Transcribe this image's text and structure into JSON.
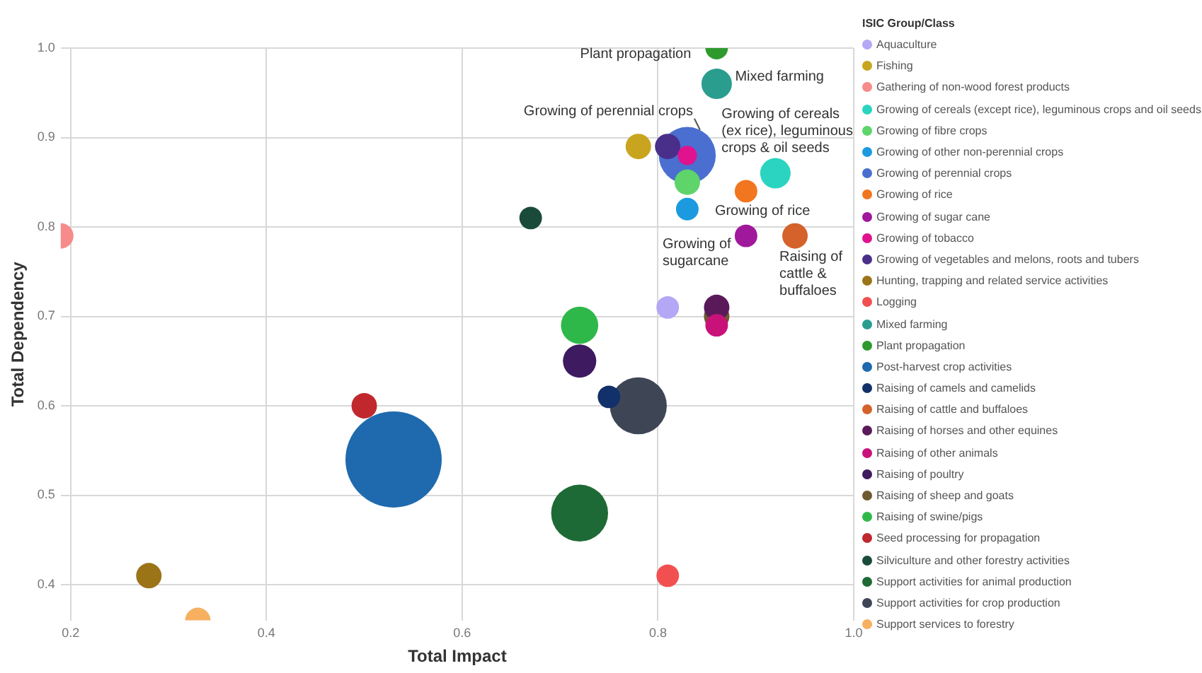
{
  "chart_data": {
    "type": "bubble",
    "xlabel": "Total Impact",
    "ylabel": "Total Dependency",
    "legend_title": "ISIC Group/Class",
    "legend": "right",
    "grid": true,
    "xlim": [
      0.19,
      1.0
    ],
    "xticks": [
      {
        "value": 0.2,
        "label": "0.2"
      },
      {
        "value": 0.4,
        "label": "0.4"
      },
      {
        "value": 0.6,
        "label": "0.6"
      },
      {
        "value": 0.8,
        "label": "0.8"
      },
      {
        "value": 1.0,
        "label": "1.0"
      }
    ],
    "ylim": [
      0.36,
      1.0
    ],
    "yticks": [
      {
        "value": 0.4,
        "label": "0.4"
      },
      {
        "value": 0.5,
        "label": "0.5"
      },
      {
        "value": 0.6,
        "label": "0.6"
      },
      {
        "value": 0.7,
        "label": "0.7"
      },
      {
        "value": 0.8,
        "label": "0.8"
      },
      {
        "value": 0.9,
        "label": "0.9"
      },
      {
        "value": 1.0,
        "label": "1.0"
      }
    ],
    "series": [
      {
        "name": "Aquaculture",
        "color": "#b4a7f5",
        "x": [
          0.81
        ],
        "values": [
          0.71
        ],
        "sizes": [
          0.055
        ]
      },
      {
        "name": "Fishing",
        "color": "#c9a51f",
        "x": [
          0.78
        ],
        "values": [
          0.89
        ],
        "sizes": [
          0.07
        ]
      },
      {
        "name": "Gathering of non-wood forest products",
        "color": "#f78a8a",
        "x": [
          0.19
        ],
        "values": [
          0.79
        ],
        "sizes": [
          0.07
        ]
      },
      {
        "name": "Growing of cereals (except rice), leguminous crops and oil seeds",
        "color": "#2ad4c0",
        "x": [
          0.92
        ],
        "values": [
          0.86
        ],
        "sizes": [
          0.1
        ]
      },
      {
        "name": "Growing of fibre crops",
        "color": "#5ed46a",
        "x": [
          0.83
        ],
        "values": [
          0.85
        ],
        "sizes": [
          0.07
        ]
      },
      {
        "name": "Growing of other non-perennial crops",
        "color": "#1b9ae0",
        "x": [
          0.83
        ],
        "values": [
          0.82
        ],
        "sizes": [
          0.055
        ]
      },
      {
        "name": "Growing of perennial crops",
        "color": "#4a6fd0",
        "x": [
          0.83
        ],
        "values": [
          0.88
        ],
        "sizes": [
          0.35
        ]
      },
      {
        "name": "Growing of rice",
        "color": "#f2751f",
        "x": [
          0.89
        ],
        "values": [
          0.84
        ],
        "sizes": [
          0.055
        ]
      },
      {
        "name": "Growing of sugar cane",
        "color": "#a0189c",
        "x": [
          0.89
        ],
        "values": [
          0.79
        ],
        "sizes": [
          0.055
        ]
      },
      {
        "name": "Growing of tobacco",
        "color": "#e0128e",
        "x": [
          0.83
        ],
        "values": [
          0.88
        ],
        "sizes": [
          0.04
        ]
      },
      {
        "name": "Growing of vegetables and melons, roots and tubers",
        "color": "#4a2f8a",
        "x": [
          0.81
        ],
        "values": [
          0.89
        ],
        "sizes": [
          0.07
        ]
      },
      {
        "name": "Hunting, trapping and related service activities",
        "color": "#9c7418",
        "x": [
          0.28
        ],
        "values": [
          0.41
        ],
        "sizes": [
          0.07
        ]
      },
      {
        "name": "Logging",
        "color": "#f25050",
        "x": [
          0.81
        ],
        "values": [
          0.41
        ],
        "sizes": [
          0.055
        ]
      },
      {
        "name": "Mixed farming",
        "color": "#2a9d8f",
        "x": [
          0.86
        ],
        "values": [
          0.96
        ],
        "sizes": [
          0.1
        ]
      },
      {
        "name": "Plant propagation",
        "color": "#2e9a2e",
        "x": [
          0.86
        ],
        "values": [
          1.0
        ],
        "sizes": [
          0.055
        ]
      },
      {
        "name": "Post-harvest crop activities",
        "color": "#1f6aae",
        "x": [
          0.53
        ],
        "values": [
          0.54
        ],
        "sizes": [
          1
        ]
      },
      {
        "name": "Raising of camels and camelids",
        "color": "#12306a",
        "x": [
          0.75
        ],
        "values": [
          0.61
        ],
        "sizes": [
          0.055
        ]
      },
      {
        "name": "Raising of cattle and buffaloes",
        "color": "#d4622a",
        "x": [
          0.94
        ],
        "values": [
          0.79
        ],
        "sizes": [
          0.07
        ]
      },
      {
        "name": "Raising of horses and other equines",
        "color": "#5a1a5a",
        "x": [
          0.86
        ],
        "values": [
          0.71
        ],
        "sizes": [
          0.07
        ]
      },
      {
        "name": "Raising of other animals",
        "color": "#c8127a",
        "x": [
          0.86
        ],
        "values": [
          0.69
        ],
        "sizes": [
          0.055
        ]
      },
      {
        "name": "Raising of poultry",
        "color": "#3e1a60",
        "x": [
          0.72
        ],
        "values": [
          0.65
        ],
        "sizes": [
          0.12
        ]
      },
      {
        "name": "Raising of sheep and goats",
        "color": "#6e5a2e",
        "x": [
          0.86
        ],
        "values": [
          0.7
        ],
        "sizes": [
          0.07
        ]
      },
      {
        "name": "Raising of swine/pigs",
        "color": "#2fb84a",
        "x": [
          0.72
        ],
        "values": [
          0.69
        ],
        "sizes": [
          0.15
        ]
      },
      {
        "name": "Seed processing for propagation",
        "color": "#c0282e",
        "x": [
          0.5
        ],
        "values": [
          0.6
        ],
        "sizes": [
          0.07
        ]
      },
      {
        "name": "Silviculture and other forestry activities",
        "color": "#1a4a3a",
        "x": [
          0.67
        ],
        "values": [
          0.81
        ],
        "sizes": [
          0.055
        ]
      },
      {
        "name": "Support activities for animal production",
        "color": "#1e6a36",
        "x": [
          0.72
        ],
        "values": [
          0.48
        ],
        "sizes": [
          0.35
        ]
      },
      {
        "name": "Support activities for crop production",
        "color": "#3e4656",
        "x": [
          0.78
        ],
        "values": [
          0.6
        ],
        "sizes": [
          0.35
        ]
      },
      {
        "name": "Support services to forestry",
        "color": "#f7b060",
        "x": [
          0.33
        ],
        "values": [
          0.36
        ],
        "sizes": [
          0.07
        ]
      }
    ],
    "annotations": [
      {
        "text": "Plant propagation",
        "x": 0.86,
        "y": 1.0
      },
      {
        "text": "Mixed farming",
        "x": 0.86,
        "y": 0.96
      },
      {
        "text": "Growing of perennial crops",
        "x": 0.83,
        "y": 0.88
      },
      {
        "text": "Growing of cereals (ex rice), leguminous crops & oil seeds",
        "x": 0.92,
        "y": 0.86
      },
      {
        "text": "Growing of rice",
        "x": 0.89,
        "y": 0.84
      },
      {
        "text": "Growing of sugarcane",
        "x": 0.89,
        "y": 0.79
      },
      {
        "text": "Raising of cattle & buffaloes",
        "x": 0.94,
        "y": 0.79
      }
    ]
  }
}
